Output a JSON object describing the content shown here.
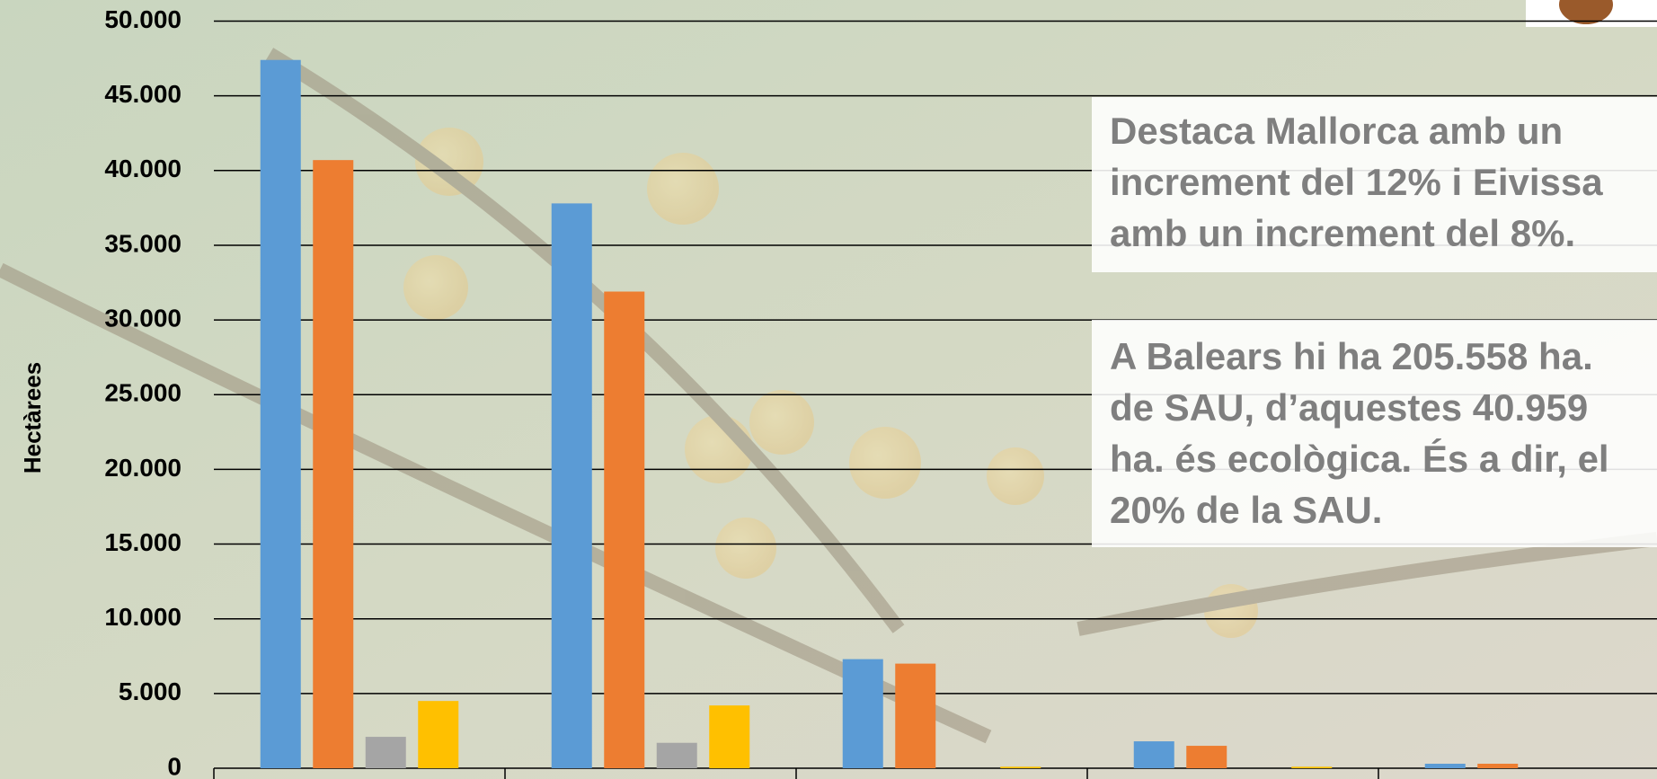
{
  "chart_data": {
    "type": "bar",
    "y_label": "Hectàrees",
    "categories": [
      null,
      null,
      null,
      null,
      null
    ],
    "series": [
      {
        "color": "#5b9bd5",
        "values": [
          47400,
          37800,
          7300,
          1800,
          300
        ]
      },
      {
        "color": "#ed7d31",
        "values": [
          40700,
          31900,
          7000,
          1500,
          300
        ]
      },
      {
        "color": "#a5a5a5",
        "values": [
          2100,
          1700,
          0,
          0,
          0
        ]
      },
      {
        "color": "#ffc000",
        "values": [
          4500,
          4200,
          100,
          100,
          0
        ]
      }
    ],
    "ylim": [
      0,
      50000
    ],
    "yticks": [
      0,
      {
        "value": 5000,
        "label": "5.000"
      },
      {
        "value": 10000,
        "label": "10.000"
      },
      {
        "value": 15000,
        "label": "15.000"
      },
      {
        "value": 20000,
        "label": "20.000"
      },
      {
        "value": 25000,
        "label": "25.000"
      },
      {
        "value": 30000,
        "label": "30.000"
      },
      {
        "value": 35000,
        "label": "35.000"
      },
      {
        "value": 40000,
        "label": "40.000"
      },
      {
        "value": 45000,
        "label": "45.000"
      },
      {
        "value": 50000,
        "label": "50.000"
      }
    ],
    "grid": true,
    "annotations": [
      [
        "Destaca Mallorca amb un",
        "increment del 12% i Eivissa",
        "amb un increment del 8%."
      ],
      [
        "A Balears hi ha 205.558 ha.",
        "de SAU, d’aquestes 40.959",
        "ha. és ecològica. És a dir, el",
        "20% de la SAU."
      ]
    ]
  }
}
